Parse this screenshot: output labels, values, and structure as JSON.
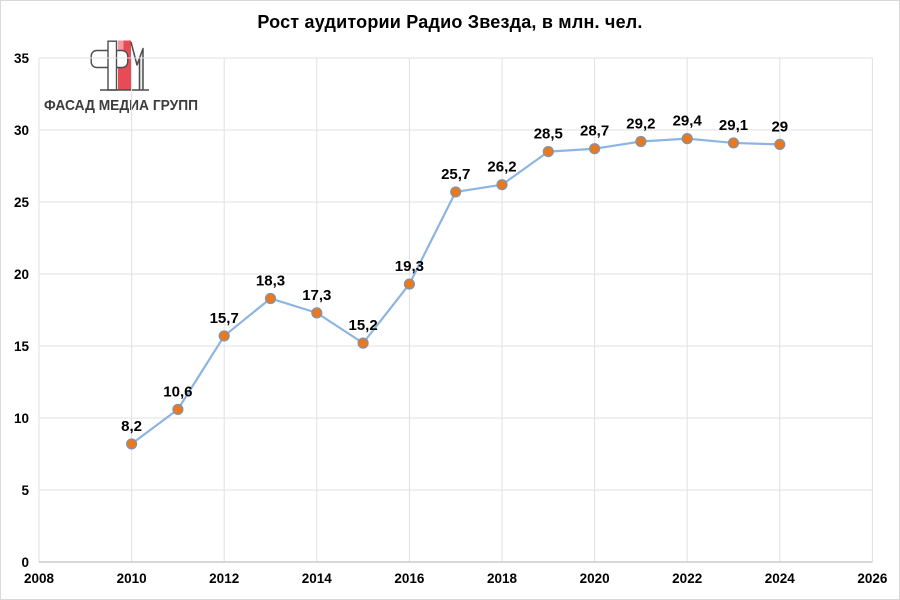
{
  "chart_data": {
    "type": "line",
    "title": "Рост аудитории Радио Звезда, в млн. чел.",
    "x": [
      2010,
      2011,
      2012,
      2013,
      2014,
      2015,
      2016,
      2017,
      2018,
      2019,
      2020,
      2021,
      2022,
      2023,
      2024
    ],
    "values": [
      8.2,
      10.6,
      15.7,
      18.3,
      17.3,
      15.2,
      19.3,
      25.7,
      26.2,
      28.5,
      28.7,
      29.2,
      29.4,
      29.1,
      29
    ],
    "point_labels": [
      "8,2",
      "10,6",
      "15,7",
      "18,3",
      "17,3",
      "15,2",
      "19,3",
      "25,7",
      "26,2",
      "28,5",
      "28,7",
      "29,2",
      "29,4",
      "29,1",
      "29"
    ],
    "xlim": [
      2008,
      2026
    ],
    "ylim": [
      0,
      35
    ],
    "x_ticks": [
      "2008",
      "2010",
      "2012",
      "2014",
      "2016",
      "2018",
      "2020",
      "2022",
      "2024",
      "2026"
    ],
    "y_ticks": [
      "0",
      "5",
      "10",
      "15",
      "20",
      "25",
      "30",
      "35"
    ],
    "grid": true,
    "legend": "none",
    "xlabel": "",
    "ylabel": "",
    "line_color": "#8DB4E2",
    "marker_fill": "#E8791F",
    "marker_stroke": "#7F94B0",
    "grid_color": "#E0E0E0",
    "axis_color": "#C0C0C0",
    "label_color": "#000000"
  },
  "logo": {
    "text": "ФАСАД МЕДИА ГРУПП",
    "red": "#E64C56",
    "pink": "#F29AA1",
    "outline": "#4D4D4D",
    "light_fill": "#EDEDED",
    "text_color": "#3C3C3C"
  }
}
